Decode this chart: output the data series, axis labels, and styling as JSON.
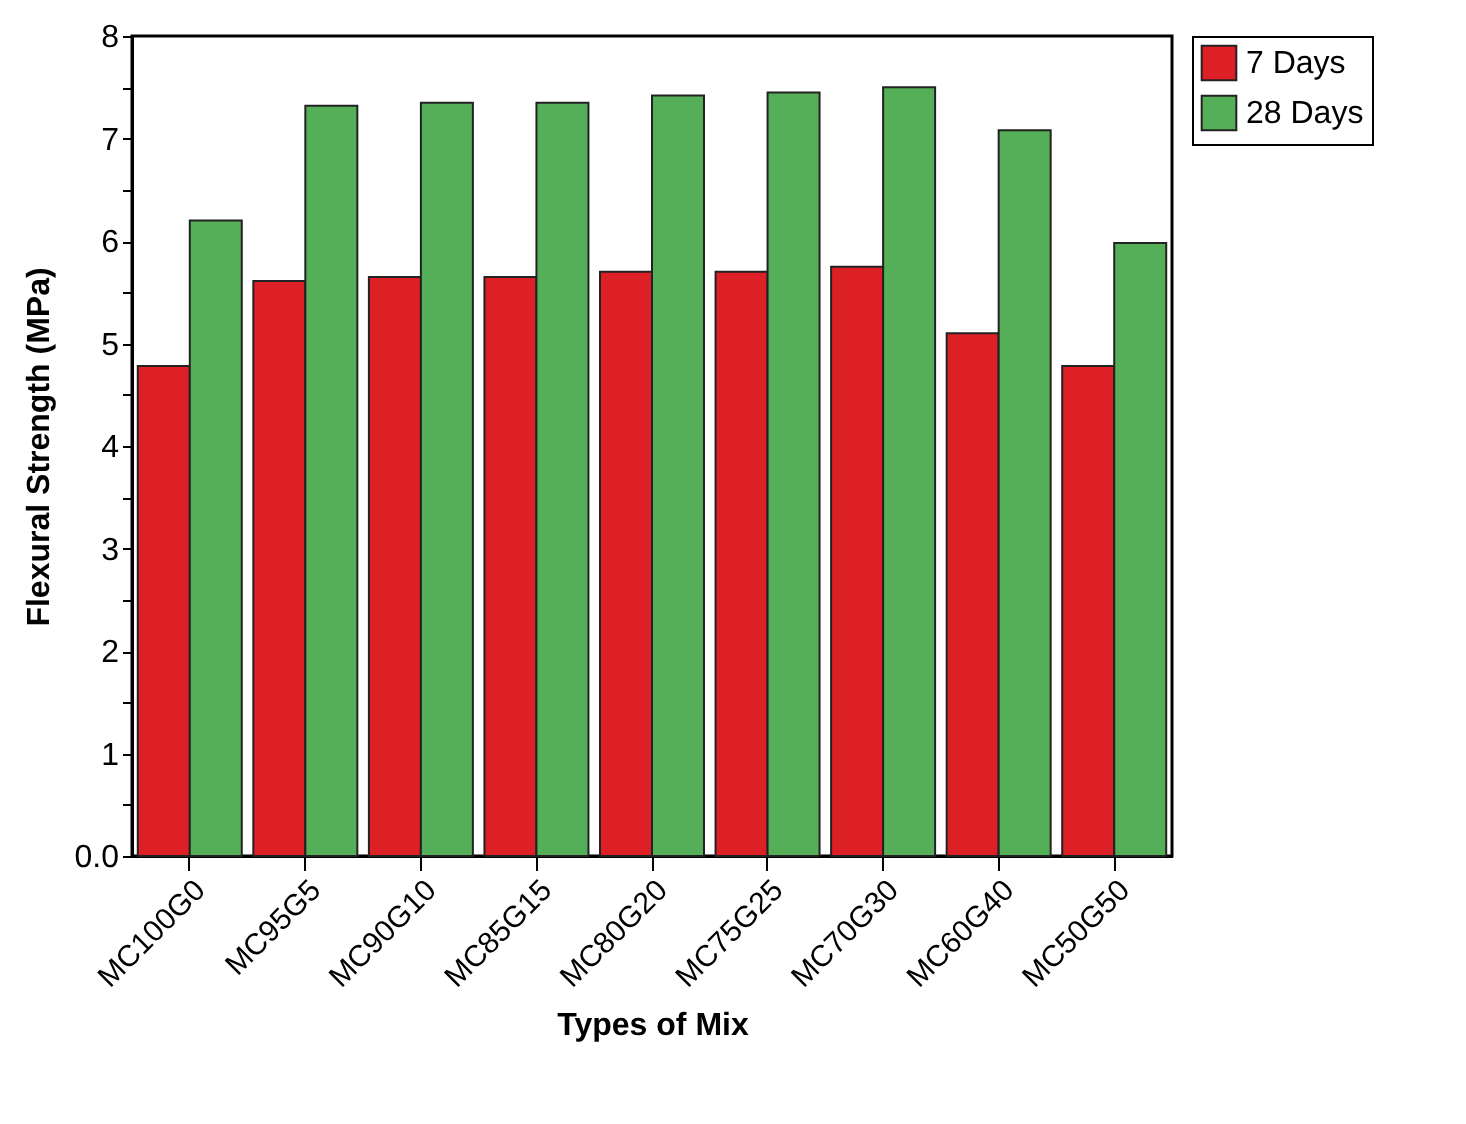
{
  "chart_data": {
    "type": "bar",
    "xlabel": "Types of Mix",
    "ylabel": "Flexural Strength (MPa)",
    "categories": [
      "MC100G0",
      "MC95G5",
      "MC90G10",
      "MC85G15",
      "MC80G20",
      "MC75G25",
      "MC70G30",
      "MC60G40",
      "MC50G50"
    ],
    "series": [
      {
        "name": "7 Days",
        "color": "#dd1f26",
        "values": [
          4.78,
          5.61,
          5.65,
          5.65,
          5.7,
          5.7,
          5.75,
          5.1,
          4.78
        ]
      },
      {
        "name": "28 Days",
        "color": "#55af58",
        "values": [
          6.2,
          7.32,
          7.35,
          7.35,
          7.42,
          7.45,
          7.5,
          7.08,
          5.98
        ]
      }
    ],
    "ylim": [
      0,
      8
    ],
    "yticks": [
      {
        "value": 0,
        "label": "0.0"
      },
      {
        "value": 0.5,
        "label": null
      },
      1,
      {
        "value": 1.5,
        "label": null
      },
      2,
      {
        "value": 2.5,
        "label": null
      },
      3,
      {
        "value": 3.5,
        "label": null
      },
      4,
      {
        "value": 4.5,
        "label": null
      },
      5,
      {
        "value": 5.5,
        "label": null
      },
      6,
      {
        "value": 6.5,
        "label": null
      },
      7,
      {
        "value": 7.5,
        "label": null
      },
      8
    ],
    "grid": false,
    "legend": "right"
  }
}
